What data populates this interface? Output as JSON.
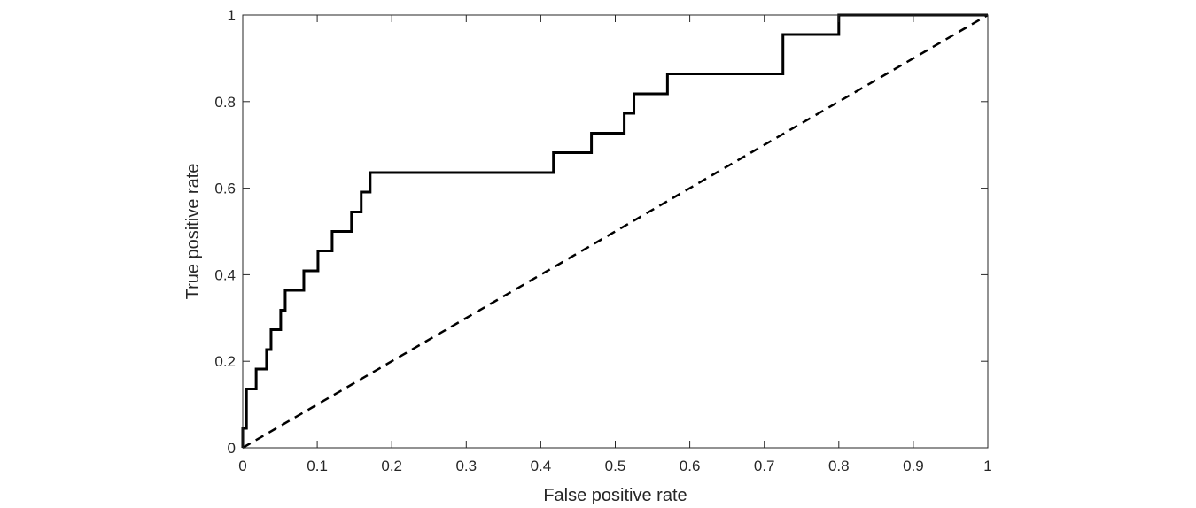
{
  "chart_data": {
    "type": "line",
    "title": "",
    "xlabel": "False positive rate",
    "ylabel": "True positive rate",
    "xlim": [
      0,
      1
    ],
    "ylim": [
      0,
      1
    ],
    "grid": false,
    "legend": "none",
    "x_ticks": [
      0,
      0.1,
      0.2,
      0.3,
      0.4,
      0.5,
      0.6,
      0.7,
      0.8,
      0.9,
      1
    ],
    "x_tick_labels": [
      "0",
      "0.1",
      "0.2",
      "0.3",
      "0.4",
      "0.5",
      "0.6",
      "0.7",
      "0.8",
      "0.9",
      "1"
    ],
    "y_ticks": [
      0,
      0.2,
      0.4,
      0.6,
      0.8,
      1
    ],
    "y_tick_labels": [
      "0",
      "0.2",
      "0.4",
      "0.6",
      "0.8",
      "1"
    ],
    "series": [
      {
        "style": "solid",
        "color": "#000000",
        "x": [
          0,
          0,
          0.005,
          0.005,
          0.018,
          0.018,
          0.032,
          0.032,
          0.038,
          0.038,
          0.051,
          0.051,
          0.057,
          0.057,
          0.082,
          0.082,
          0.101,
          0.101,
          0.12,
          0.12,
          0.146,
          0.146,
          0.159,
          0.159,
          0.171,
          0.171,
          0.417,
          0.417,
          0.468,
          0.468,
          0.512,
          0.512,
          0.525,
          0.525,
          0.57,
          0.57,
          0.725,
          0.725,
          0.8,
          0.8,
          1
        ],
        "y": [
          0,
          0.045,
          0.045,
          0.136,
          0.136,
          0.182,
          0.182,
          0.227,
          0.227,
          0.273,
          0.273,
          0.318,
          0.318,
          0.364,
          0.364,
          0.409,
          0.409,
          0.455,
          0.455,
          0.5,
          0.5,
          0.545,
          0.545,
          0.591,
          0.591,
          0.636,
          0.636,
          0.682,
          0.682,
          0.727,
          0.727,
          0.773,
          0.773,
          0.818,
          0.818,
          0.864,
          0.864,
          0.955,
          0.955,
          1,
          1
        ]
      },
      {
        "style": "dashed",
        "color": "#000000",
        "x": [
          0,
          1
        ],
        "y": [
          0,
          1
        ]
      }
    ]
  }
}
